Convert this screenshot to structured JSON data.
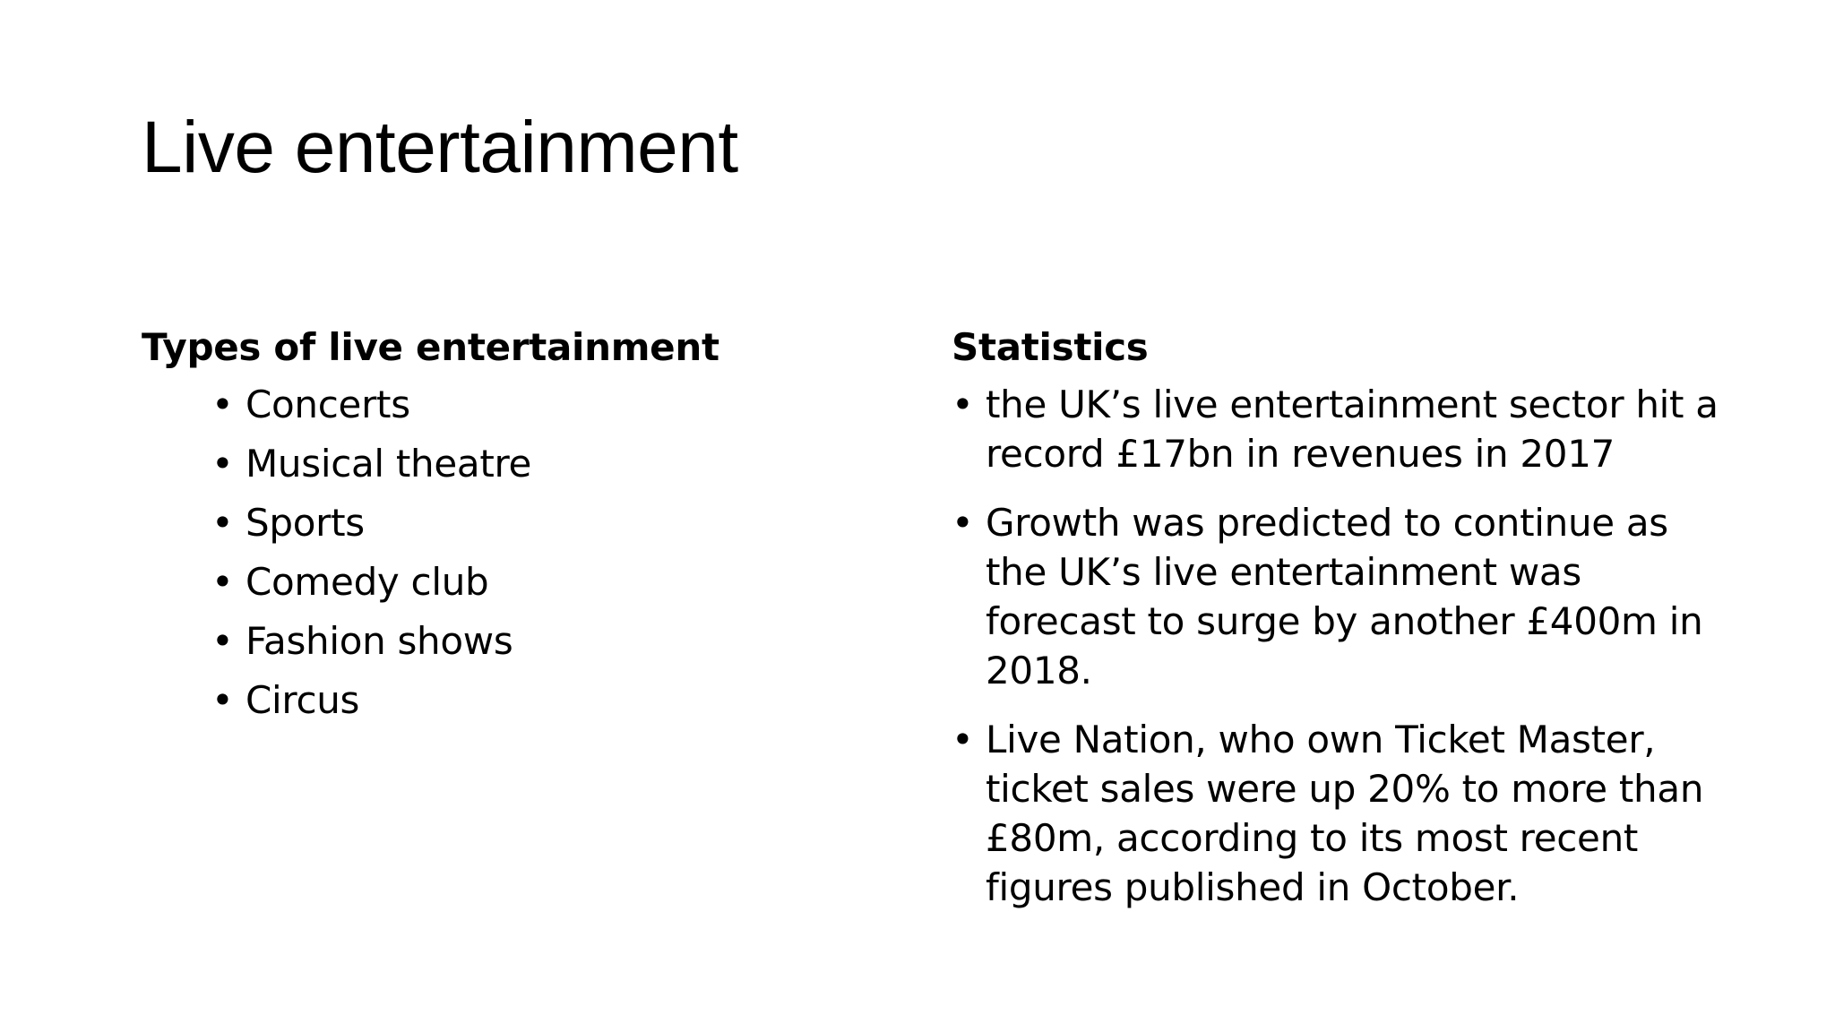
{
  "slide": {
    "title": "Live entertainment",
    "bullet_symbol": "•",
    "left": {
      "heading": "Types of live entertainment",
      "items": [
        "Concerts",
        "Musical theatre",
        "Sports",
        "Comedy club",
        "Fashion shows",
        "Circus"
      ]
    },
    "right": {
      "heading": "Statistics",
      "items": [
        "the UK’s live entertainment sector hit a record £17bn in revenues in 2017",
        "Growth was predicted to continue as the UK’s live entertainment was forecast to surge by another £400m in 2018.",
        "Live Nation, who own Ticket Master, ticket sales were up 20% to more than £80m, according to its most recent figures published in October."
      ]
    }
  }
}
